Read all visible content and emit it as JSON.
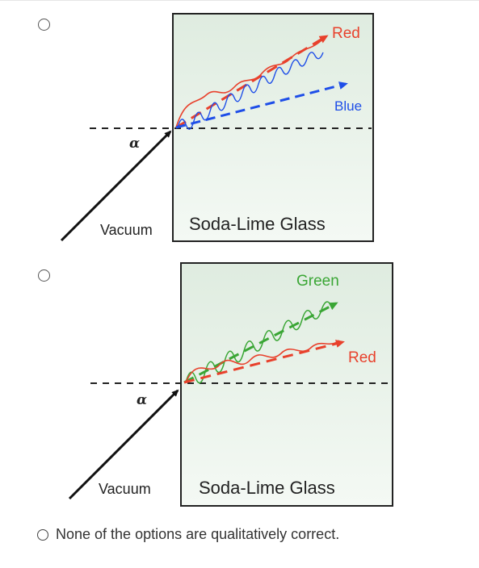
{
  "options": [
    {
      "id": "option-1",
      "diagram": {
        "medium_left": "Vacuum",
        "medium_right": "Soda-Lime Glass",
        "angle_symbol": "α",
        "upper_ray_label": "Red",
        "lower_ray_label": "Blue",
        "upper_ray_color": "#e8412c",
        "lower_ray_color": "#1e4ee8"
      }
    },
    {
      "id": "option-2",
      "diagram": {
        "medium_left": "Vacuum",
        "medium_right": "Soda-Lime Glass",
        "angle_symbol": "α",
        "upper_ray_label": "Green",
        "lower_ray_label": "Red",
        "upper_ray_color": "#3aa635",
        "lower_ray_color": "#e8412c"
      }
    }
  ],
  "none_option": {
    "label": "None of the options are qualitatively correct."
  },
  "colors": {
    "glass_fill_top": "#e0ede0",
    "glass_fill_bottom": "#f3f8f3",
    "glass_border": "#222222",
    "red": "#e8412c",
    "blue": "#1e4ee8",
    "green": "#3aa635"
  }
}
